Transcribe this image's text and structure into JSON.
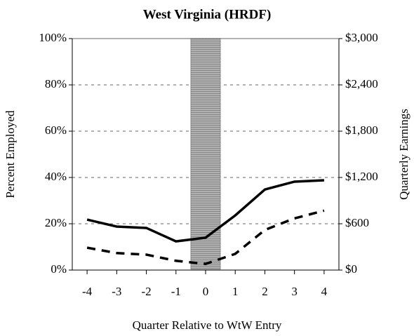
{
  "chart_data": {
    "type": "line",
    "title": "West Virginia (HRDF)",
    "x_label": "Quarter Relative to WtW Entry",
    "y_label": "Percent Employed",
    "y2_label": "Quarterly Earnings",
    "x": [
      -4,
      -3,
      -2,
      -1,
      0,
      1,
      2,
      3,
      4
    ],
    "series": [
      {
        "color": "#000000",
        "style": "solid",
        "axis": "y",
        "values": [
          21.8,
          18.8,
          18.2,
          12.4,
          14,
          23.6,
          34.8,
          38.2,
          38.8
        ]
      },
      {
        "color": "#000000",
        "style": "dashed",
        "axis": "y2",
        "values": [
          290,
          220,
          200,
          120,
          80,
          210,
          520,
          670,
          770
        ]
      }
    ],
    "xlim": [
      -4.5,
      4.5
    ],
    "xticks": [
      -4,
      -3,
      -2,
      -1,
      0,
      1,
      2,
      3,
      4
    ],
    "ylim": [
      0,
      100
    ],
    "yticks": [
      {
        "value": 0,
        "label": "0%"
      },
      {
        "value": 20,
        "label": "20%"
      },
      {
        "value": 40,
        "label": "40%"
      },
      {
        "value": 60,
        "label": "60%"
      },
      {
        "value": 80,
        "label": "80%"
      },
      {
        "value": 100,
        "label": "100%"
      }
    ],
    "y2lim": [
      0,
      3000
    ],
    "y2ticks": [
      {
        "value": 0,
        "label": "$0"
      },
      {
        "value": 600,
        "label": "$600"
      },
      {
        "value": 1200,
        "label": "$1,200"
      },
      {
        "value": 1800,
        "label": "$1,800"
      },
      {
        "value": 2400,
        "label": "$2,400"
      },
      {
        "value": 3000,
        "label": "$3,000"
      }
    ],
    "shaded_region": [
      -0.5,
      0.5
    ],
    "shade_color": "#a6a6a6",
    "grid": true
  }
}
